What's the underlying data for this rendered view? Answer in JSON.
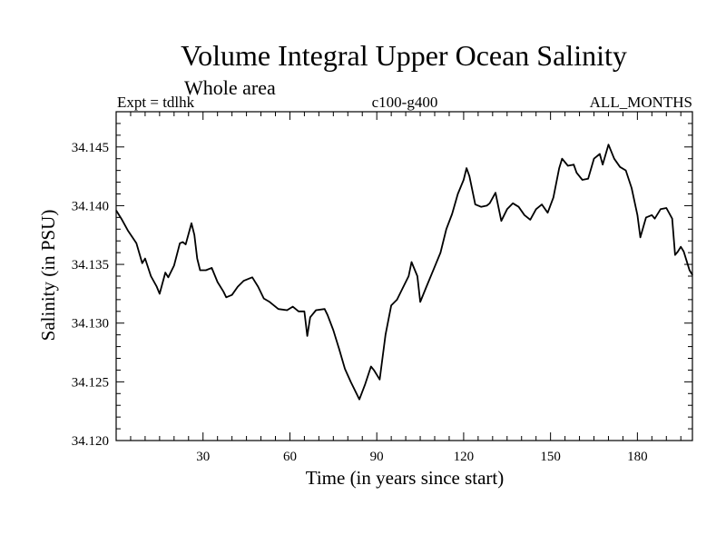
{
  "chart_data": {
    "type": "line",
    "title": "Volume Integral Upper Ocean Salinity",
    "subtitle": "Whole area",
    "expt_label": "Expt = tdlhk",
    "run_label": "c100-g400",
    "months_label": "ALL_MONTHS",
    "xlabel": "Time (in years since start)",
    "ylabel": "Salinity (in PSU)",
    "xlim": [
      0,
      199
    ],
    "ylim": [
      34.12,
      34.148
    ],
    "xticks": [
      30,
      60,
      90,
      120,
      150,
      180
    ],
    "xtick_labels": [
      "30",
      "60",
      "90",
      "120",
      "150",
      "180"
    ],
    "yticks": [
      34.12,
      34.125,
      34.13,
      34.135,
      34.14,
      34.145
    ],
    "ytick_labels": [
      "34.120",
      "34.125",
      "34.130",
      "34.135",
      "34.140",
      "34.145"
    ],
    "series": [
      {
        "name": "Salinity",
        "x": [
          0,
          2,
          4,
          7,
          9,
          10,
          12,
          14,
          15,
          17,
          18,
          20,
          22,
          23,
          24,
          26,
          27,
          28,
          29,
          30,
          31,
          33,
          35,
          37,
          38,
          40,
          42,
          44,
          46,
          47,
          49,
          51,
          53,
          56,
          59,
          61,
          63,
          65,
          66,
          67,
          69,
          72,
          73,
          75,
          77,
          79,
          81,
          84,
          86,
          88,
          89,
          91,
          93,
          95,
          97,
          99,
          101,
          102,
          104,
          105,
          107,
          110,
          112,
          114,
          116,
          118,
          120,
          121,
          122,
          124,
          126,
          128,
          129,
          131,
          133,
          135,
          137,
          139,
          141,
          143,
          145,
          147,
          149,
          151,
          153,
          154,
          156,
          158,
          159,
          161,
          163,
          165,
          167,
          168,
          170,
          172,
          174,
          176,
          178,
          180,
          181,
          183,
          185,
          186,
          188,
          190,
          192,
          193,
          194,
          195,
          196,
          197,
          198,
          199
        ],
        "values": [
          34.1396,
          34.1388,
          34.1379,
          34.1368,
          34.1351,
          34.1355,
          34.134,
          34.1331,
          34.1325,
          34.1343,
          34.1339,
          34.1349,
          34.1368,
          34.1369,
          34.1367,
          34.1385,
          34.1375,
          34.1355,
          34.1345,
          34.1345,
          34.1345,
          34.1347,
          34.1335,
          34.1327,
          34.1322,
          34.1324,
          34.1331,
          34.1336,
          34.1338,
          34.1339,
          34.1331,
          34.1321,
          34.1318,
          34.1312,
          34.1311,
          34.1314,
          34.131,
          34.131,
          34.1289,
          34.1305,
          34.1311,
          34.1312,
          34.1307,
          34.1294,
          34.1278,
          34.1261,
          34.125,
          34.1235,
          34.1248,
          34.1263,
          34.126,
          34.1252,
          34.129,
          34.1315,
          34.132,
          34.133,
          34.134,
          34.1352,
          34.134,
          34.1318,
          34.133,
          34.1348,
          34.136,
          34.138,
          34.1393,
          34.141,
          34.1422,
          34.1432,
          34.1425,
          34.1401,
          34.1399,
          34.14,
          34.1402,
          34.1411,
          34.1387,
          34.1397,
          34.1402,
          34.1399,
          34.1392,
          34.1388,
          34.1397,
          34.1401,
          34.1394,
          34.1407,
          34.1432,
          34.144,
          34.1434,
          34.1435,
          34.1428,
          34.1422,
          34.1423,
          34.144,
          34.1444,
          34.1435,
          34.1452,
          34.144,
          34.1433,
          34.143,
          34.1415,
          34.1392,
          34.1373,
          34.139,
          34.1392,
          34.1389,
          34.1397,
          34.1398,
          34.1389,
          34.1358,
          34.1361,
          34.1365,
          34.1361,
          34.1353,
          34.1345,
          34.1341
        ]
      }
    ]
  }
}
